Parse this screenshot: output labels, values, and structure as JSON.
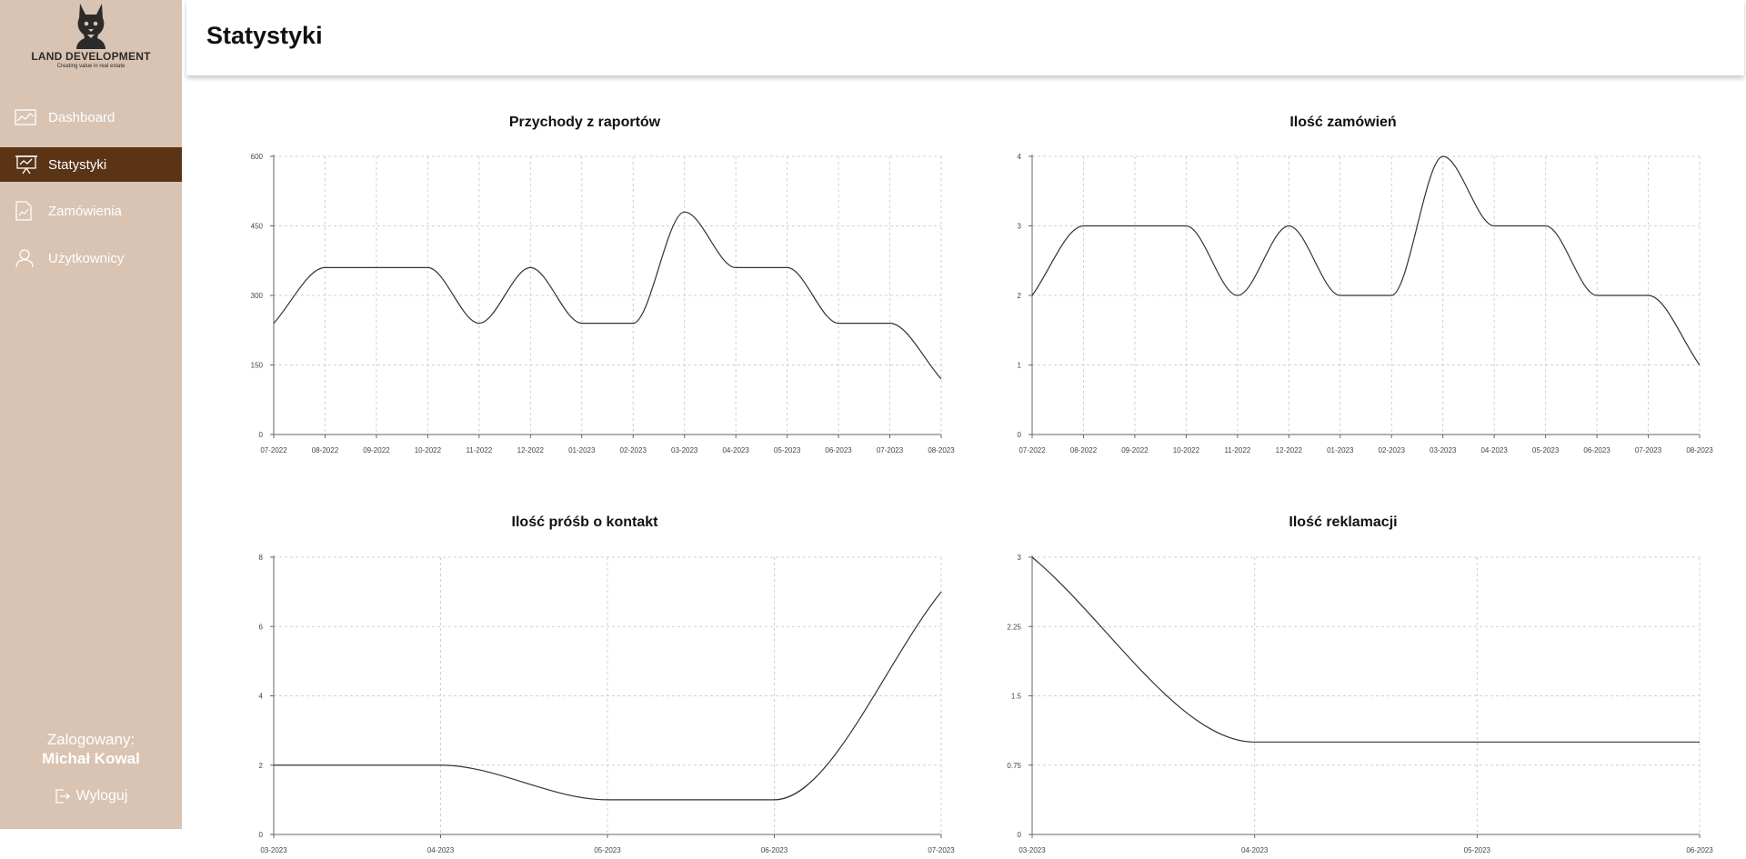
{
  "sidebar": {
    "brand": "LAND DEVELOPMENT",
    "tagline": "Creating value in real estate",
    "items": [
      {
        "label": "Dashboard",
        "icon": "line-chart-icon"
      },
      {
        "label": "Statystyki",
        "icon": "presentation-chart-icon",
        "active": true
      },
      {
        "label": "Zamówienia",
        "icon": "document-chart-icon"
      },
      {
        "label": "Użytkownicy",
        "icon": "user-icon"
      }
    ],
    "logged_label": "Zalogowany:",
    "user_name": "Michał Kowal",
    "logout_label": "Wyloguj"
  },
  "header": {
    "title": "Statystyki"
  },
  "colors": {
    "sidebar_bg": "#d9c3b2",
    "active_bg": "#5b3416",
    "line": "#333333",
    "grid": "#d0d0d0"
  },
  "chart_data": [
    {
      "type": "line",
      "title": "Przychody z raportów",
      "x": [
        "07-2022",
        "08-2022",
        "09-2022",
        "10-2022",
        "11-2022",
        "12-2022",
        "01-2023",
        "02-2023",
        "03-2023",
        "04-2023",
        "05-2023",
        "06-2023",
        "07-2023",
        "08-2023"
      ],
      "values": [
        240,
        360,
        360,
        360,
        240,
        360,
        240,
        240,
        480,
        360,
        360,
        240,
        240,
        120
      ],
      "yticks": [
        0,
        150,
        300,
        450,
        600
      ],
      "ylim": [
        0,
        600
      ],
      "grid": true
    },
    {
      "type": "line",
      "title": "Ilość zamówień",
      "x": [
        "07-2022",
        "08-2022",
        "09-2022",
        "10-2022",
        "11-2022",
        "12-2022",
        "01-2023",
        "02-2023",
        "03-2023",
        "04-2023",
        "05-2023",
        "06-2023",
        "07-2023",
        "08-2023"
      ],
      "values": [
        2,
        3,
        3,
        3,
        2,
        3,
        2,
        2,
        4,
        3,
        3,
        2,
        2,
        1
      ],
      "yticks": [
        0,
        1,
        2,
        3,
        4
      ],
      "ylim": [
        0,
        4
      ],
      "grid": true
    },
    {
      "type": "line",
      "title": "Ilość próśb o kontakt",
      "x": [
        "03-2023",
        "04-2023",
        "05-2023",
        "06-2023",
        "07-2023"
      ],
      "values": [
        2,
        2,
        1,
        1,
        7
      ],
      "yticks": [
        0,
        2,
        4,
        6,
        8
      ],
      "ylim": [
        0,
        8
      ],
      "grid": true
    },
    {
      "type": "line",
      "title": "Ilość reklamacji",
      "x": [
        "03-2023",
        "04-2023",
        "05-2023",
        "06-2023"
      ],
      "values": [
        3,
        1,
        1,
        1
      ],
      "yticks": [
        "0",
        "0.75",
        "1.5",
        "2.25",
        "3"
      ],
      "ylim": [
        0,
        3
      ],
      "grid": true
    }
  ]
}
